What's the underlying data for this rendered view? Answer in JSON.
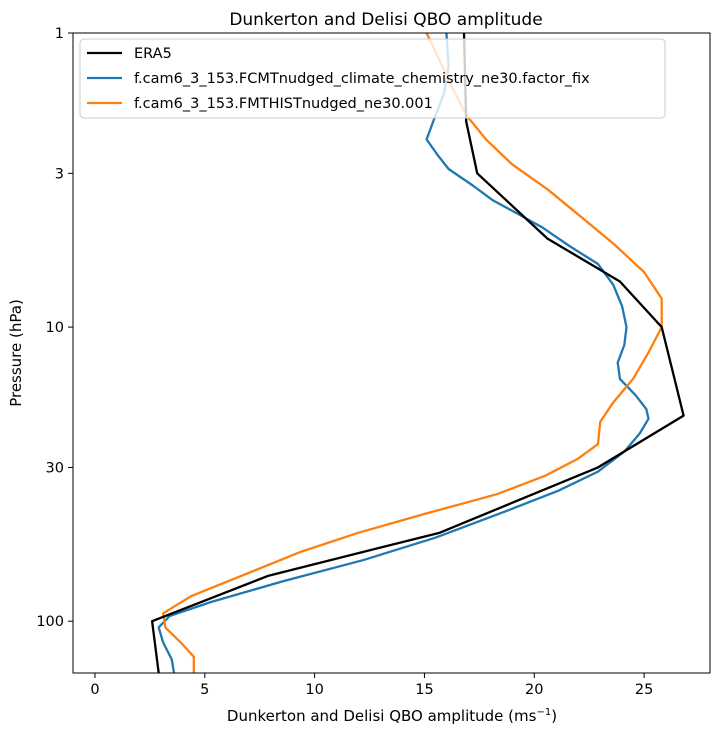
{
  "chart_data": {
    "type": "line",
    "title": "Dunkerton and Delisi QBO amplitude",
    "xlabel_main": "Dunkerton and Delisi QBO amplitude (ms",
    "xlabel_sup": "−1",
    "xlabel_close": ")",
    "ylabel": "Pressure (hPa)",
    "xlim": [
      -1,
      28
    ],
    "ylim": [
      1,
      150
    ],
    "yscale": "log",
    "y_inverted": true,
    "xticks": [
      0,
      5,
      10,
      15,
      20,
      25
    ],
    "xtick_labels": [
      "0",
      "5",
      "10",
      "15",
      "20",
      "25"
    ],
    "yticks": [
      1,
      3,
      10,
      30,
      100
    ],
    "ytick_labels": [
      "1",
      "3",
      "10",
      "30",
      "100"
    ],
    "legend_position": "top-left",
    "series": [
      {
        "name": "ERA5",
        "color": "#000000",
        "points": [
          [
            16.8,
            1
          ],
          [
            16.9,
            2
          ],
          [
            17.4,
            3
          ],
          [
            20.6,
            5
          ],
          [
            23.9,
            7
          ],
          [
            25.8,
            10
          ],
          [
            26.8,
            20
          ],
          [
            22.9,
            30
          ],
          [
            15.7,
            50
          ],
          [
            7.9,
            70
          ],
          [
            2.6,
            100
          ],
          [
            2.9,
            150
          ]
        ]
      },
      {
        "name": "f.cam6_3_153.FCMTnudged_climate_chemistry_ne30.factor_fix",
        "color": "#1f77b4",
        "points": [
          [
            16.0,
            1
          ],
          [
            16.1,
            1.3
          ],
          [
            15.9,
            1.6
          ],
          [
            15.4,
            2
          ],
          [
            15.1,
            2.3
          ],
          [
            15.6,
            2.6
          ],
          [
            16.1,
            2.9
          ],
          [
            17.2,
            3.3
          ],
          [
            18.1,
            3.7
          ],
          [
            19.2,
            4.1
          ],
          [
            20.4,
            4.6
          ],
          [
            21.6,
            5.3
          ],
          [
            22.9,
            6.1
          ],
          [
            23.6,
            7.2
          ],
          [
            24.0,
            8.5
          ],
          [
            24.2,
            10
          ],
          [
            24.1,
            11.5
          ],
          [
            23.8,
            13.2
          ],
          [
            23.9,
            15
          ],
          [
            24.6,
            17
          ],
          [
            25.1,
            19
          ],
          [
            25.2,
            20.5
          ],
          [
            24.8,
            23
          ],
          [
            24.1,
            26.5
          ],
          [
            22.9,
            31
          ],
          [
            21.1,
            36
          ],
          [
            18.8,
            42
          ],
          [
            15.5,
            52
          ],
          [
            12.2,
            62
          ],
          [
            8.6,
            73
          ],
          [
            5.3,
            86
          ],
          [
            3.4,
            96
          ],
          [
            2.9,
            105
          ],
          [
            3.1,
            118
          ],
          [
            3.5,
            135
          ],
          [
            3.6,
            150
          ]
        ]
      },
      {
        "name": "f.cam6_3_153.FMTHISTnudged_ne30.001",
        "color": "#ff7f0e",
        "points": [
          [
            15.1,
            1
          ],
          [
            15.6,
            1.2
          ],
          [
            16.2,
            1.5
          ],
          [
            16.9,
            1.9
          ],
          [
            17.8,
            2.3
          ],
          [
            19.0,
            2.8
          ],
          [
            20.6,
            3.4
          ],
          [
            22.1,
            4.2
          ],
          [
            23.6,
            5.2
          ],
          [
            25.0,
            6.5
          ],
          [
            25.8,
            8
          ],
          [
            25.8,
            10
          ],
          [
            25.2,
            12.2
          ],
          [
            24.5,
            15
          ],
          [
            23.6,
            18
          ],
          [
            23.0,
            21
          ],
          [
            22.9,
            25
          ],
          [
            22.0,
            28
          ],
          [
            20.5,
            32
          ],
          [
            18.3,
            37
          ],
          [
            15.1,
            43
          ],
          [
            12.0,
            50
          ],
          [
            9.4,
            58
          ],
          [
            6.9,
            69
          ],
          [
            4.4,
            82
          ],
          [
            3.1,
            94
          ],
          [
            3.2,
            105
          ],
          [
            3.9,
            118
          ],
          [
            4.5,
            132
          ],
          [
            4.5,
            150
          ]
        ]
      }
    ]
  }
}
